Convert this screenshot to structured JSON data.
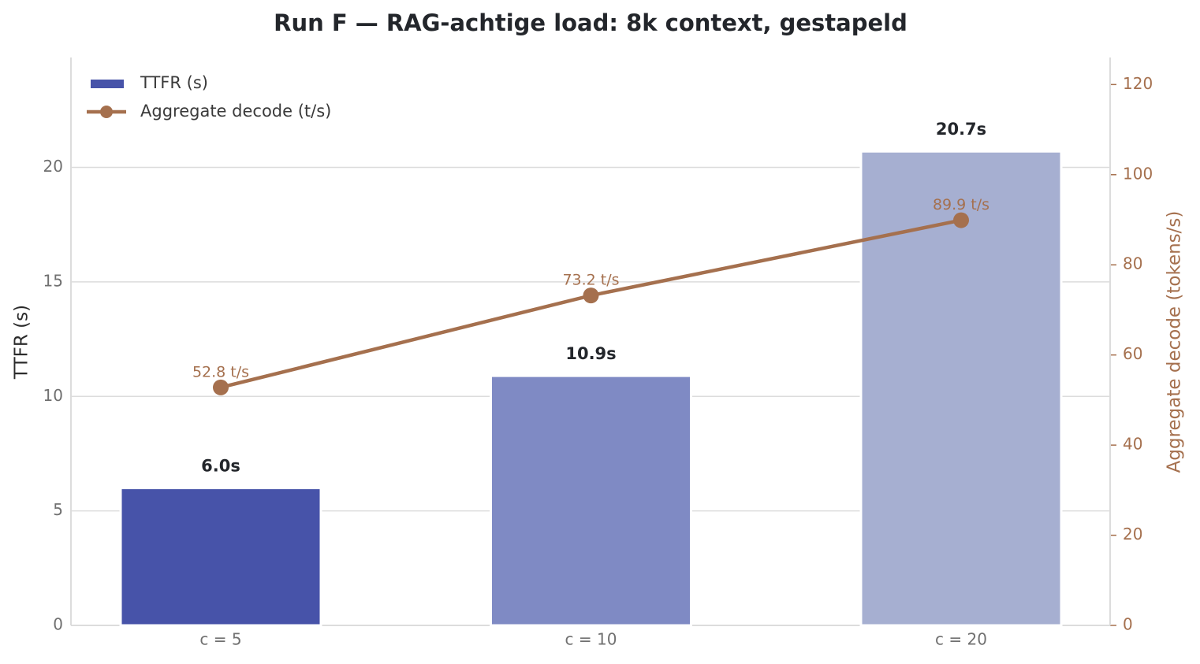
{
  "chart_data": {
    "type": "bar",
    "title": "Run F — RAG-achtige load: 8k context, gestapeld",
    "categories": [
      "c = 5",
      "c = 10",
      "c = 20"
    ],
    "y_label": "TTFR (s)",
    "y2_label": "Aggregate decode (tokens/s)",
    "ylim": [
      0,
      24.8
    ],
    "yticks": [
      0,
      5,
      10,
      15,
      20
    ],
    "y2lim": [
      0,
      126
    ],
    "y2ticks": [
      0,
      20,
      40,
      60,
      80,
      100,
      120
    ],
    "grid": true,
    "legend": "upper left",
    "series": [
      {
        "name": "TTFR (s)",
        "type": "bar",
        "color": "#4753a9",
        "colors": [
          "#4753a9",
          "#7f8ac4",
          "#a6afd1"
        ],
        "values": [
          6.0,
          10.9,
          20.7
        ],
        "value_labels": [
          "6.0s",
          "10.9s",
          "20.7s"
        ]
      },
      {
        "name": "Aggregate decode (t/s)",
        "type": "line",
        "axis": "y2",
        "color": "#a5704e",
        "values": [
          52.8,
          73.2,
          89.9
        ],
        "value_labels": [
          "52.8 t/s",
          "73.2 t/s",
          "89.9 t/s"
        ]
      }
    ]
  }
}
